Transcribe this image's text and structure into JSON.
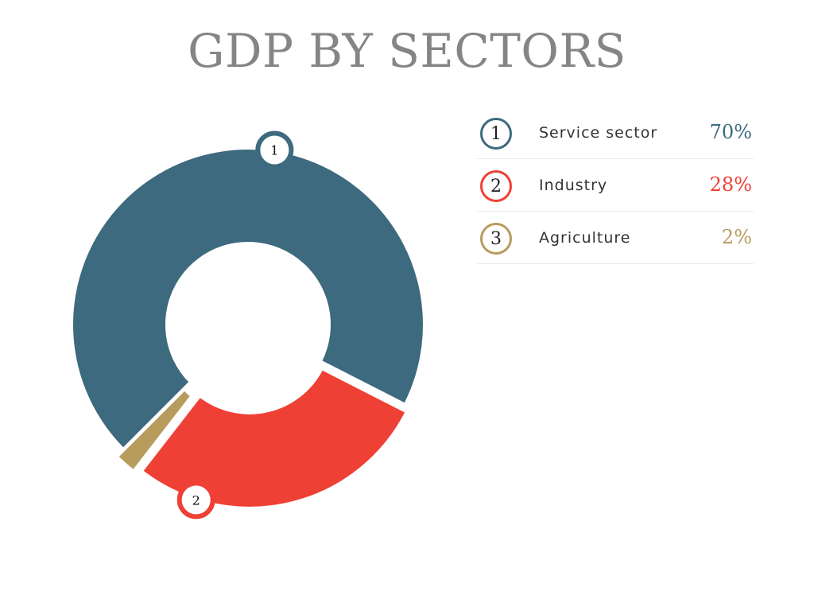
{
  "chart_data": {
    "type": "pie",
    "title": "GDP BY SECTORS",
    "categories": [
      "Service sector",
      "Industry",
      "Agriculture"
    ],
    "badges": [
      "1",
      "2",
      "3"
    ],
    "values": [
      70,
      28,
      2
    ],
    "value_labels": [
      "70%",
      "28%",
      "2%"
    ],
    "colors": [
      "#3d6a7e",
      "#ef4036",
      "#b89c5e"
    ],
    "slice_markers": [
      "1",
      "2"
    ],
    "legend_position": "right"
  }
}
